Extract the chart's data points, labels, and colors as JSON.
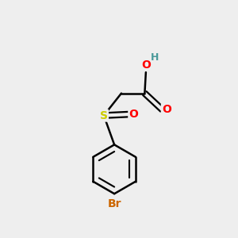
{
  "background_color": "#eeeeee",
  "atom_colors": {
    "C": "#000000",
    "H": "#4a9a9a",
    "O": "#ff0000",
    "S": "#cccc00",
    "Br": "#cc6600"
  },
  "bond_color": "#000000",
  "bond_width": 1.8,
  "figsize": [
    3.0,
    3.0
  ],
  "dpi": 100,
  "xlim": [
    0,
    10
  ],
  "ylim": [
    0,
    10
  ]
}
